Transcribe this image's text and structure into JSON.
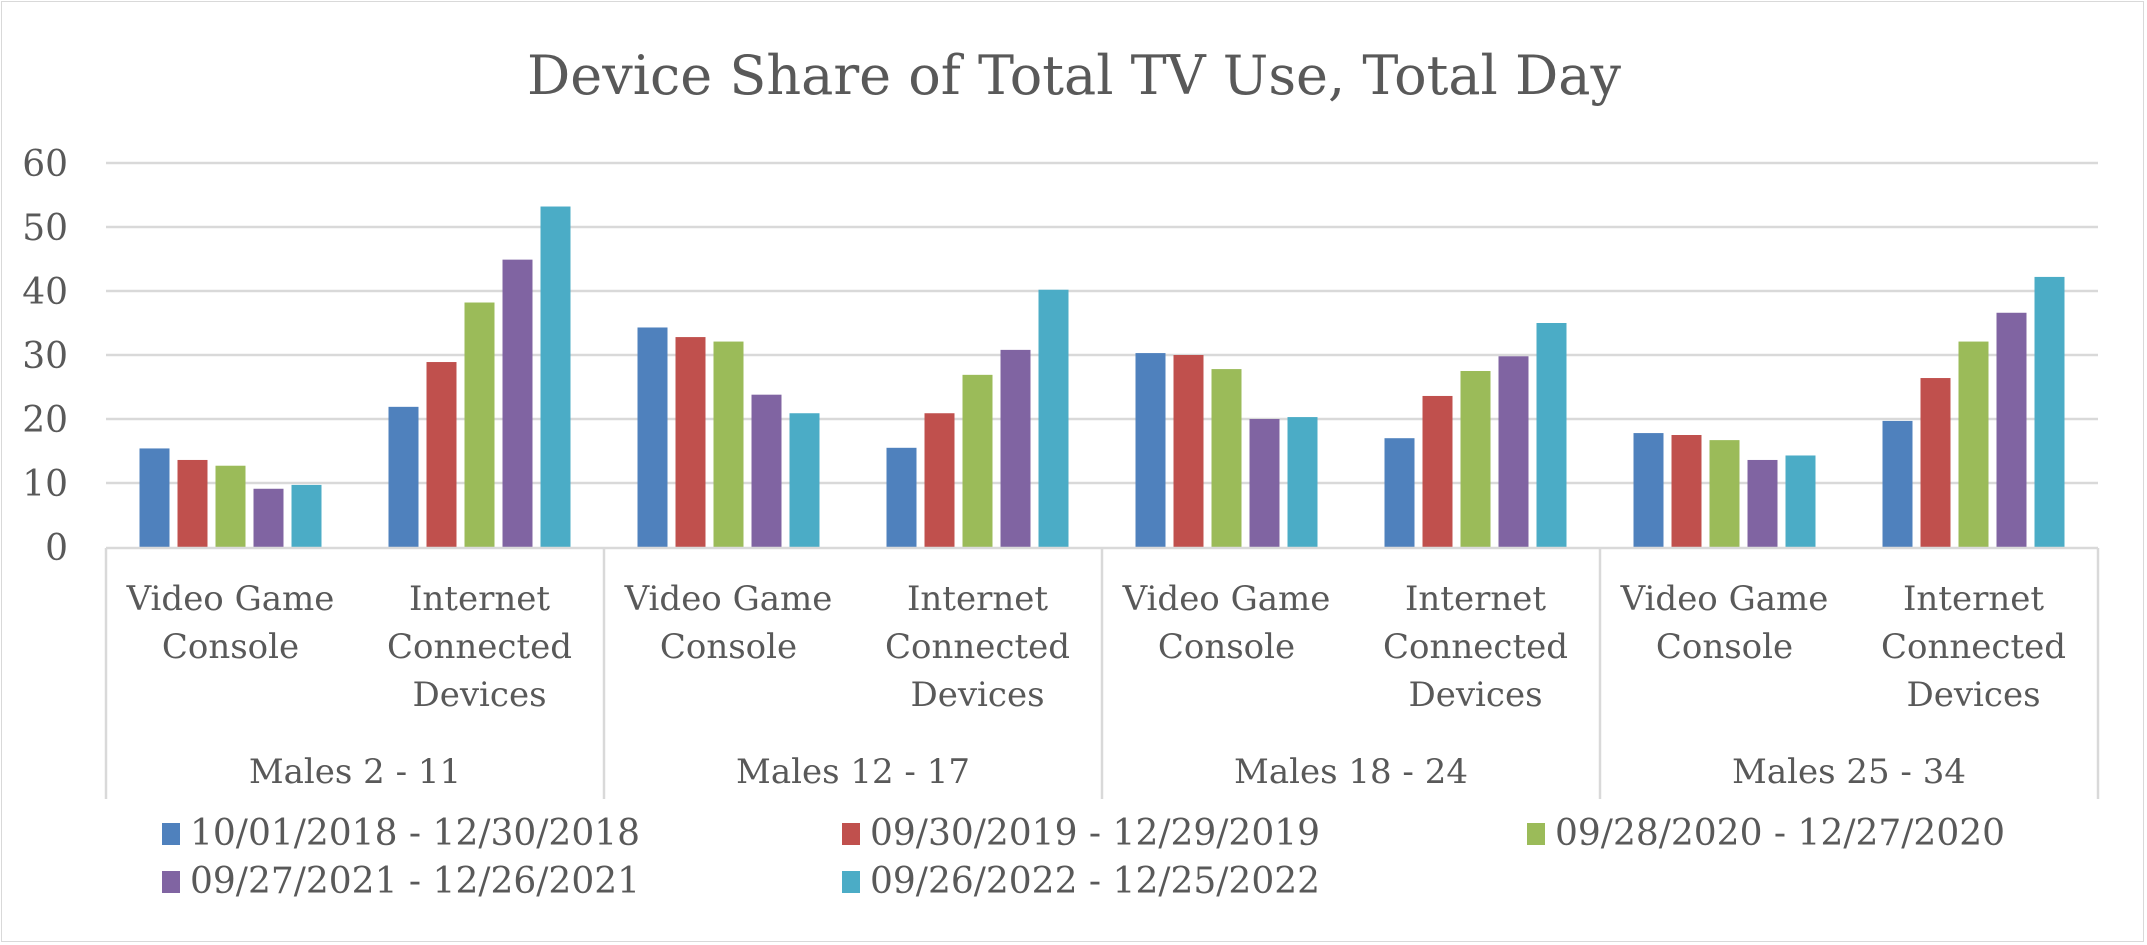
{
  "chart_data": {
    "type": "bar",
    "title": "Device Share of Total TV Use, Total Day",
    "xlabel": "",
    "ylabel": "",
    "ylim": [
      0,
      60
    ],
    "yticks": [
      0,
      10,
      20,
      30,
      40,
      50,
      60
    ],
    "grid": true,
    "legend_position": "bottom",
    "groups": [
      {
        "label": "Males 2 - 11",
        "categories": [
          "Video Game Console",
          "Internet Connected Devices"
        ]
      },
      {
        "label": "Males 12 - 17",
        "categories": [
          "Video Game Console",
          "Internet Connected Devices"
        ]
      },
      {
        "label": "Males 18 - 24",
        "categories": [
          "Video Game Console",
          "Internet Connected Devices"
        ]
      },
      {
        "label": "Males 25 - 34",
        "categories": [
          "Video Game Console",
          "Internet Connected Devices"
        ]
      }
    ],
    "categories": [
      "Males 2 - 11 | Video Game Console",
      "Males 2 - 11 | Internet Connected Devices",
      "Males 12 - 17 | Video Game Console",
      "Males 12 - 17 | Internet Connected Devices",
      "Males 18 - 24 | Video Game Console",
      "Males 18 - 24 | Internet Connected Devices",
      "Males 25 - 34 | Video Game Console",
      "Males 25 - 34 | Internet Connected Devices"
    ],
    "category_label_lines": {
      "Video Game Console": [
        "Video Game",
        "Console"
      ],
      "Internet Connected Devices": [
        "Internet",
        "Connected",
        "Devices"
      ]
    },
    "series": [
      {
        "name": "10/01/2018 - 12/30/2018",
        "color": "#4f81bd",
        "values": [
          15.4,
          21.9,
          34.3,
          15.5,
          30.3,
          17.0,
          17.8,
          19.7
        ]
      },
      {
        "name": "09/30/2019 - 12/29/2019",
        "color": "#c0504d",
        "values": [
          13.6,
          28.9,
          32.8,
          20.9,
          30.0,
          23.6,
          17.5,
          26.4
        ]
      },
      {
        "name": "09/28/2020 - 12/27/2020",
        "color": "#9bbb59",
        "values": [
          12.7,
          38.2,
          32.1,
          26.9,
          27.8,
          27.5,
          16.7,
          32.1
        ]
      },
      {
        "name": "09/27/2021 - 12/26/2021",
        "color": "#8064a2",
        "values": [
          9.1,
          44.9,
          23.8,
          30.8,
          20.0,
          29.8,
          13.6,
          36.6
        ]
      },
      {
        "name": "09/26/2022 - 12/25/2022",
        "color": "#4bacc6",
        "values": [
          9.7,
          53.2,
          20.9,
          40.2,
          20.3,
          35.0,
          14.3,
          42.2
        ]
      }
    ]
  }
}
